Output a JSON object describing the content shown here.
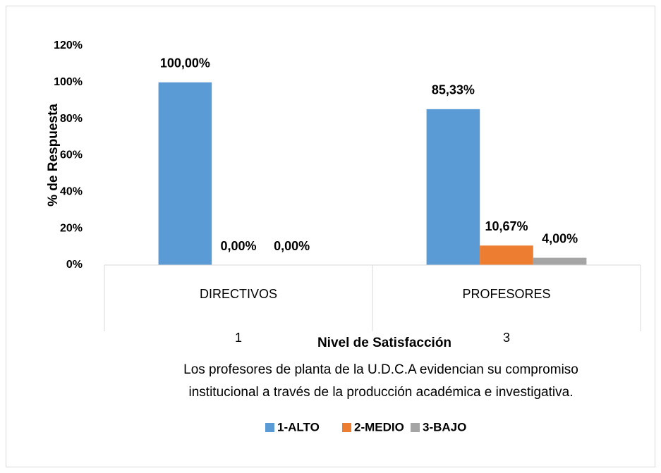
{
  "chart_data": {
    "type": "bar",
    "y_axis_label": "% de Respuesta",
    "x_axis_label": "Nivel de Satisfacción",
    "categories": [
      "DIRECTIVOS",
      "PROFESORES"
    ],
    "category_codes": [
      "1",
      "3"
    ],
    "caption_lines": [
      "Los profesores de planta de la U.D.C.A evidencian su compromiso",
      "institucional a través de la producción académica e investigativa."
    ],
    "series": [
      {
        "name": "1-ALTO",
        "color": "#5b9bd5",
        "values": [
          100,
          85.33
        ],
        "value_labels": [
          "100,00%",
          "85,33%"
        ]
      },
      {
        "name": "2-MEDIO",
        "color": "#ed7d31",
        "values": [
          0,
          10.67
        ],
        "value_labels": [
          "0,00%",
          "10,67%"
        ]
      },
      {
        "name": "3-BAJO",
        "color": "#a5a5a5",
        "values": [
          0,
          4
        ],
        "value_labels": [
          "0,00%",
          "4,00%"
        ]
      }
    ],
    "ylim": [
      0,
      120
    ],
    "yticks": [
      {
        "value": 0,
        "label": "0%"
      },
      {
        "value": 20,
        "label": "20%"
      },
      {
        "value": 40,
        "label": "40%"
      },
      {
        "value": 60,
        "label": "60%"
      },
      {
        "value": 80,
        "label": "80%"
      },
      {
        "value": 100,
        "label": "100%"
      },
      {
        "value": 120,
        "label": "120%"
      }
    ],
    "grid": false,
    "legend": "bottom"
  }
}
